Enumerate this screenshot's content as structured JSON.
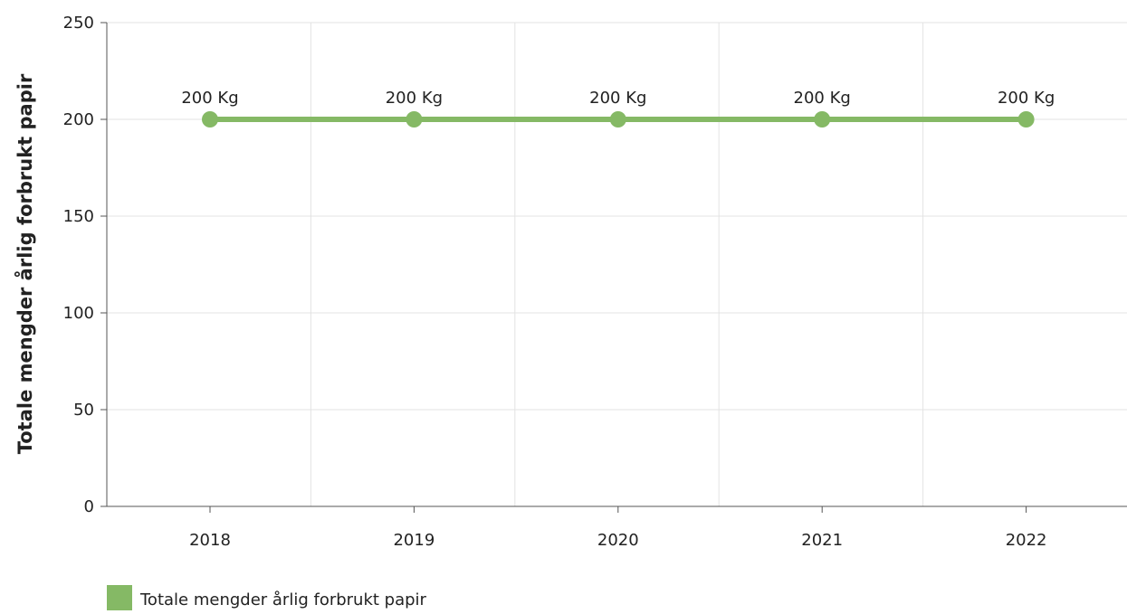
{
  "chart_data": {
    "type": "line",
    "categories": [
      "2018",
      "2019",
      "2020",
      "2021",
      "2022"
    ],
    "series": [
      {
        "name": "Totale mengder årlig forbrukt papir",
        "values": [
          200,
          200,
          200,
          200,
          200
        ],
        "data_labels": [
          "200 Kg",
          "200 Kg",
          "200 Kg",
          "200 Kg",
          "200 Kg"
        ],
        "color": "#85b965"
      }
    ],
    "title": "",
    "xlabel": "",
    "ylabel": "Totale mengder årlig forbrukt papir",
    "ylim": [
      0,
      250
    ],
    "yticks": [
      "0",
      "50",
      "100",
      "150",
      "200",
      "250"
    ],
    "grid": true,
    "legend_position": "bottom-left"
  },
  "colors": {
    "grid": "#e3e3e3",
    "axis": "#555555",
    "text": "#222222"
  }
}
